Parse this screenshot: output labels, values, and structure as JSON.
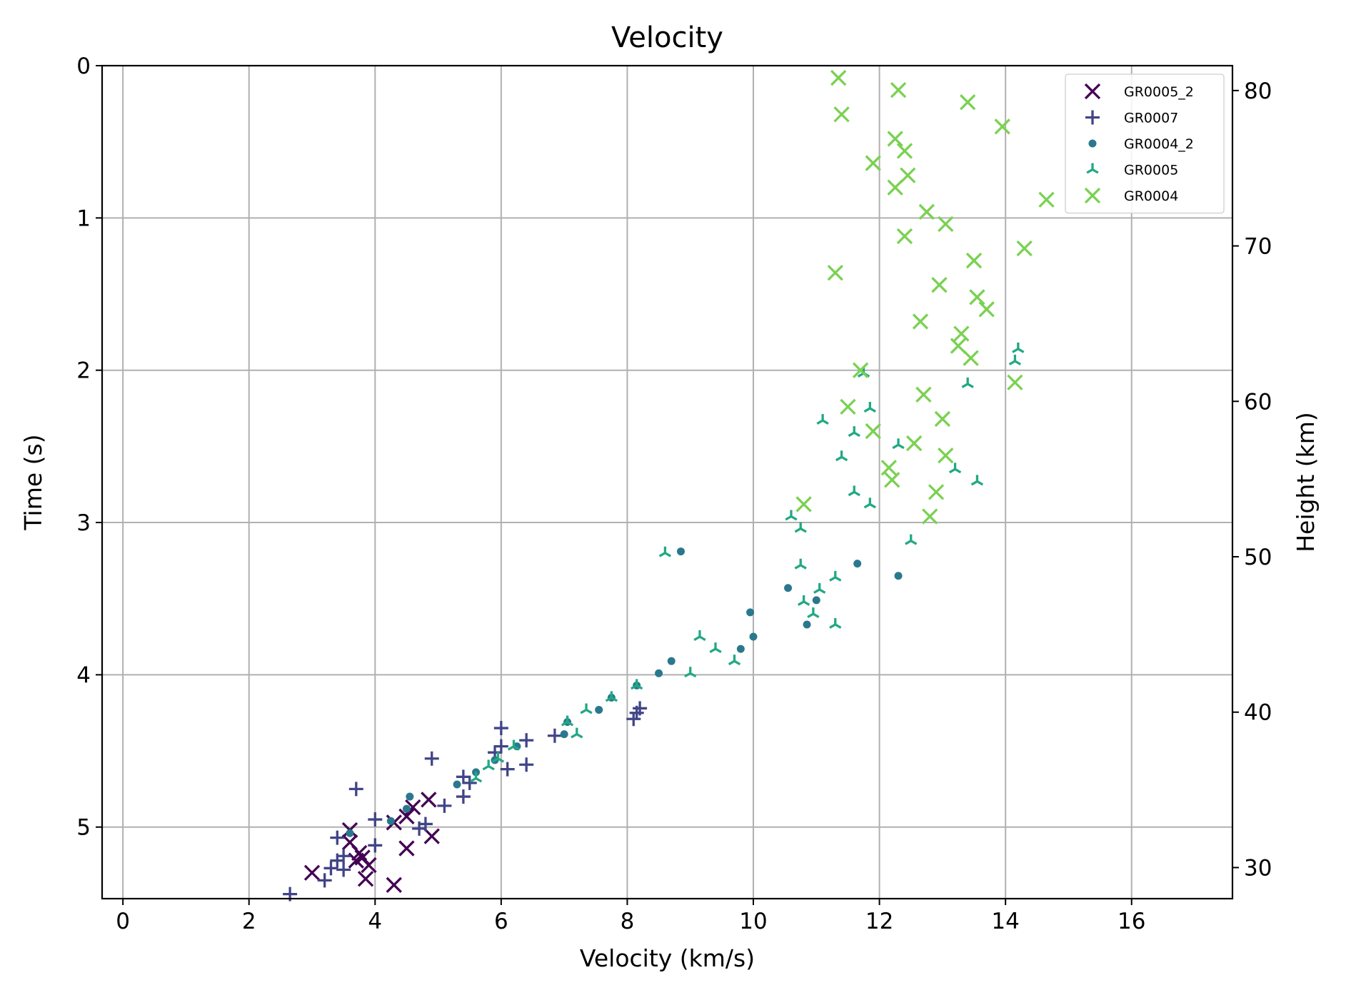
{
  "chart_data": {
    "type": "scatter",
    "title": "Velocity",
    "xlabel": "Velocity (km/s)",
    "ylabel": "Time (s)",
    "y2label": "Height (km)",
    "xlim": [
      -0.33,
      17.6
    ],
    "ylim": [
      5.47,
      0
    ],
    "y2lim": [
      28.0,
      81.6
    ],
    "xticks": [
      "0",
      "2",
      "4",
      "6",
      "8",
      "10",
      "12",
      "14",
      "16"
    ],
    "yticks": [
      "0",
      "1",
      "2",
      "3",
      "4",
      "5"
    ],
    "y2ticks": [
      "30",
      "40",
      "50",
      "60",
      "70",
      "80"
    ],
    "grid": true,
    "legend_position": "upper right",
    "series": [
      {
        "name": "GR0005_2",
        "marker": "x",
        "color": "#440154",
        "points": [
          [
            4.85,
            4.82
          ],
          [
            4.6,
            4.87
          ],
          [
            4.5,
            4.93
          ],
          [
            4.3,
            4.97
          ],
          [
            3.6,
            5.02
          ],
          [
            4.9,
            5.06
          ],
          [
            3.6,
            5.1
          ],
          [
            4.5,
            5.14
          ],
          [
            3.75,
            5.17
          ],
          [
            3.8,
            5.2
          ],
          [
            3.7,
            5.22
          ],
          [
            3.9,
            5.25
          ],
          [
            3.85,
            5.34
          ],
          [
            3.0,
            5.3
          ],
          [
            4.3,
            5.38
          ]
        ]
      },
      {
        "name": "GR0007",
        "marker": "+",
        "color": "#414487",
        "points": [
          [
            6.0,
            4.35
          ],
          [
            6.4,
            4.43
          ],
          [
            6.85,
            4.4
          ],
          [
            6.0,
            4.47
          ],
          [
            5.9,
            4.51
          ],
          [
            4.9,
            4.55
          ],
          [
            6.4,
            4.59
          ],
          [
            6.1,
            4.62
          ],
          [
            5.4,
            4.67
          ],
          [
            5.5,
            4.71
          ],
          [
            3.7,
            4.75
          ],
          [
            5.4,
            4.8
          ],
          [
            5.1,
            4.86
          ],
          [
            4.0,
            4.95
          ],
          [
            4.8,
            4.98
          ],
          [
            4.7,
            5.01
          ],
          [
            3.4,
            5.07
          ],
          [
            4.0,
            5.12
          ],
          [
            3.5,
            5.19
          ],
          [
            3.4,
            5.22
          ],
          [
            3.5,
            5.28
          ],
          [
            3.3,
            5.27
          ],
          [
            3.2,
            5.35
          ],
          [
            2.65,
            5.44
          ],
          [
            8.1,
            4.29
          ],
          [
            8.15,
            4.25
          ],
          [
            8.2,
            4.22
          ]
        ]
      },
      {
        "name": "GR0004_2",
        "marker": "o",
        "color": "#2a788e",
        "points": [
          [
            8.85,
            3.19
          ],
          [
            11.65,
            3.27
          ],
          [
            12.3,
            3.35
          ],
          [
            10.55,
            3.43
          ],
          [
            11.0,
            3.51
          ],
          [
            9.95,
            3.59
          ],
          [
            10.85,
            3.67
          ],
          [
            10.0,
            3.75
          ],
          [
            9.8,
            3.83
          ],
          [
            8.7,
            3.91
          ],
          [
            8.5,
            3.99
          ],
          [
            8.15,
            4.07
          ],
          [
            7.75,
            4.15
          ],
          [
            7.55,
            4.23
          ],
          [
            7.05,
            4.31
          ],
          [
            7.0,
            4.39
          ],
          [
            6.25,
            4.47
          ],
          [
            5.9,
            4.56
          ],
          [
            5.6,
            4.64
          ],
          [
            5.3,
            4.72
          ],
          [
            4.55,
            4.8
          ],
          [
            4.5,
            4.88
          ],
          [
            4.25,
            4.96
          ],
          [
            3.6,
            5.04
          ]
        ]
      },
      {
        "name": "GR0005",
        "marker": "tri_down",
        "color": "#22a884",
        "points": [
          [
            14.2,
            1.86
          ],
          [
            14.15,
            1.94
          ],
          [
            11.75,
            2.02
          ],
          [
            13.4,
            2.09
          ],
          [
            11.1,
            2.33
          ],
          [
            11.6,
            2.41
          ],
          [
            12.3,
            2.49
          ],
          [
            11.4,
            2.57
          ],
          [
            13.2,
            2.65
          ],
          [
            13.55,
            2.73
          ],
          [
            11.6,
            2.8
          ],
          [
            11.85,
            2.88
          ],
          [
            10.6,
            2.96
          ],
          [
            10.75,
            3.04
          ],
          [
            12.5,
            3.12
          ],
          [
            8.6,
            3.2
          ],
          [
            10.75,
            3.28
          ],
          [
            11.3,
            3.36
          ],
          [
            11.05,
            3.44
          ],
          [
            10.8,
            3.52
          ],
          [
            10.95,
            3.6
          ],
          [
            11.3,
            3.67
          ],
          [
            9.15,
            3.75
          ],
          [
            9.4,
            3.83
          ],
          [
            9.7,
            3.91
          ],
          [
            9.0,
            3.99
          ],
          [
            8.15,
            4.07
          ],
          [
            7.75,
            4.15
          ],
          [
            7.35,
            4.23
          ],
          [
            7.05,
            4.31
          ],
          [
            7.2,
            4.39
          ],
          [
            6.2,
            4.47
          ],
          [
            5.95,
            4.55
          ],
          [
            5.8,
            4.6
          ],
          [
            5.6,
            4.68
          ],
          [
            11.85,
            2.25
          ]
        ]
      },
      {
        "name": "GR0004",
        "marker": "x",
        "color": "#7ad151",
        "points": [
          [
            11.35,
            0.08
          ],
          [
            12.3,
            0.16
          ],
          [
            13.4,
            0.24
          ],
          [
            11.4,
            0.32
          ],
          [
            13.95,
            0.4
          ],
          [
            12.25,
            0.48
          ],
          [
            12.4,
            0.56
          ],
          [
            11.9,
            0.64
          ],
          [
            12.45,
            0.72
          ],
          [
            12.25,
            0.8
          ],
          [
            14.65,
            0.88
          ],
          [
            12.75,
            0.96
          ],
          [
            13.05,
            1.04
          ],
          [
            12.4,
            1.12
          ],
          [
            14.3,
            1.2
          ],
          [
            13.5,
            1.28
          ],
          [
            11.3,
            1.36
          ],
          [
            12.95,
            1.44
          ],
          [
            13.55,
            1.52
          ],
          [
            13.7,
            1.6
          ],
          [
            12.65,
            1.68
          ],
          [
            13.3,
            1.76
          ],
          [
            13.25,
            1.84
          ],
          [
            13.45,
            1.92
          ],
          [
            11.7,
            2.0
          ],
          [
            14.15,
            2.08
          ],
          [
            12.7,
            2.16
          ],
          [
            11.5,
            2.24
          ],
          [
            13.0,
            2.32
          ],
          [
            11.9,
            2.4
          ],
          [
            12.55,
            2.48
          ],
          [
            13.05,
            2.56
          ],
          [
            12.15,
            2.64
          ],
          [
            12.2,
            2.72
          ],
          [
            12.9,
            2.8
          ],
          [
            10.8,
            2.88
          ],
          [
            12.8,
            2.96
          ]
        ]
      }
    ]
  }
}
